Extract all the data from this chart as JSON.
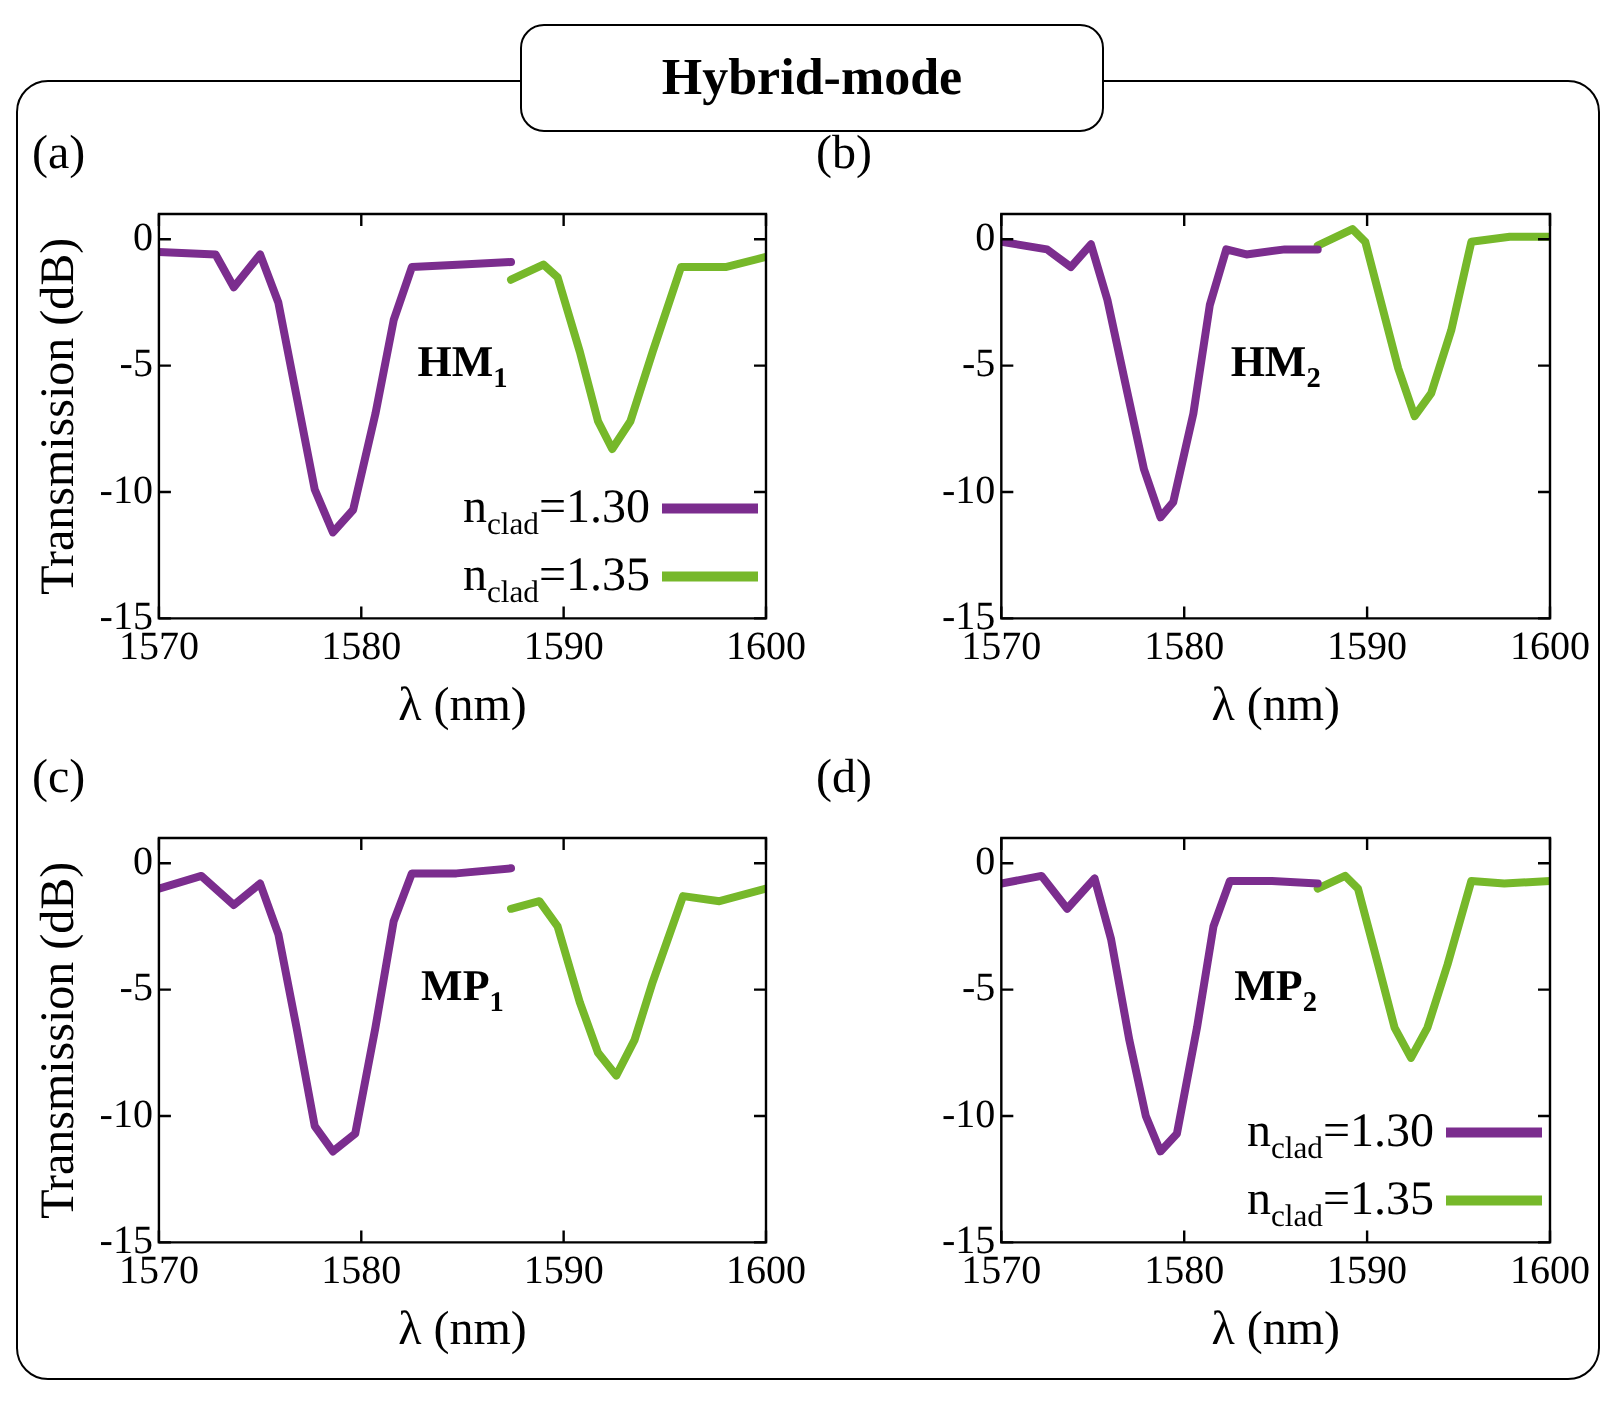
{
  "chart_data": [
    {
      "type": "line",
      "title": "Hybrid-mode",
      "subtitle": "(a)",
      "xlabel": "λ (nm)",
      "ylabel": "Transmission (dB)",
      "xlim": [
        1570,
        1600
      ],
      "ylim": [
        -15,
        1
      ],
      "xticks": [
        1570,
        1580,
        1590,
        1600
      ],
      "yticks": [
        0,
        -5,
        -10,
        -15
      ],
      "grid": false,
      "legend": "bottom right",
      "marker": "none",
      "line_style": "solid",
      "annotations": [
        "HM$_{1}$"
      ],
      "series": [
        {
          "name": "n$_{clad}$=1.30",
          "color": "#7b2d8e",
          "x": [
            1570,
            1572.8,
            1573.7,
            1575,
            1575.9,
            1576.8,
            1577.7,
            1578.6,
            1579.6,
            1580.7,
            1581.6,
            1582.5,
            1585,
            1587.4
          ],
          "values": [
            -0.5,
            -0.6,
            -1.9,
            -0.6,
            -2.5,
            -6.2,
            -9.9,
            -11.6,
            -10.7,
            -6.9,
            -3.2,
            -1.1,
            -1.0,
            -0.9
          ]
        },
        {
          "name": "n$_{clad}$=1.35",
          "color": "#76b82a",
          "x": [
            1587.4,
            1589,
            1589.7,
            1590.8,
            1591.7,
            1592.4,
            1593.3,
            1594.4,
            1595.8,
            1598,
            1600
          ],
          "values": [
            -1.6,
            -1.0,
            -1.5,
            -4.45,
            -7.2,
            -8.3,
            -7.2,
            -4.45,
            -1.1,
            -1.1,
            -0.7
          ]
        }
      ]
    },
    {
      "type": "line",
      "subtitle": "(b)",
      "xlabel": "λ (nm)",
      "xlim": [
        1570,
        1600
      ],
      "ylim": [
        -15,
        1
      ],
      "xticks": [
        1570,
        1580,
        1590,
        1600
      ],
      "yticks": [
        0,
        -5,
        -10,
        -15
      ],
      "grid": false,
      "marker": "none",
      "line_style": "solid",
      "annotations": [
        "HM$_{2}$"
      ],
      "series": [
        {
          "color": "#7b2d8e",
          "x": [
            1570,
            1572.5,
            1573.8,
            1574.9,
            1575.8,
            1576.9,
            1577.8,
            1578.7,
            1579.4,
            1580.5,
            1581.4,
            1582.3,
            1583.4,
            1585.5,
            1587.3
          ],
          "values": [
            -0.1,
            -0.4,
            -1.1,
            -0.2,
            -2.4,
            -6.1,
            -9.1,
            -11.0,
            -10.4,
            -6.9,
            -2.6,
            -0.4,
            -0.6,
            -0.4,
            -0.4
          ]
        },
        {
          "color": "#76b82a",
          "x": [
            1587.3,
            1589.2,
            1589.9,
            1590.8,
            1591.7,
            1592.6,
            1593.5,
            1594.6,
            1595.7,
            1597.8,
            1600
          ],
          "values": [
            -0.25,
            0.4,
            -0.1,
            -2.6,
            -5.1,
            -7.0,
            -6.1,
            -3.6,
            -0.1,
            0.1,
            0.1
          ]
        }
      ]
    },
    {
      "type": "line",
      "subtitle": "(c)",
      "xlabel": "λ (nm)",
      "ylabel": "Transmission (dB)",
      "xlim": [
        1570,
        1600
      ],
      "ylim": [
        -15,
        1
      ],
      "xticks": [
        1570,
        1580,
        1590,
        1600
      ],
      "yticks": [
        0,
        -5,
        -10,
        -15
      ],
      "grid": false,
      "marker": "none",
      "line_style": "solid",
      "annotations": [
        "MP$_{1}$"
      ],
      "series": [
        {
          "color": "#7b2d8e",
          "x": [
            1570,
            1572.1,
            1573.7,
            1575,
            1575.9,
            1576.8,
            1577.7,
            1578.6,
            1579.7,
            1580.7,
            1581.6,
            1582.5,
            1584.7,
            1587.4
          ],
          "values": [
            -1.0,
            -0.5,
            -1.65,
            -0.8,
            -2.8,
            -6.5,
            -10.4,
            -11.4,
            -10.7,
            -6.5,
            -2.3,
            -0.4,
            -0.4,
            -0.2
          ]
        },
        {
          "color": "#76b82a",
          "x": [
            1587.4,
            1588.8,
            1589.7,
            1590.8,
            1591.7,
            1592.6,
            1593.5,
            1594.4,
            1595.9,
            1597.7,
            1600
          ],
          "values": [
            -1.8,
            -1.5,
            -2.5,
            -5.5,
            -7.5,
            -8.4,
            -7.0,
            -4.7,
            -1.3,
            -1.5,
            -1.0
          ]
        }
      ]
    },
    {
      "type": "line",
      "subtitle": "(d)",
      "xlabel": "λ (nm)",
      "xlim": [
        1570,
        1600
      ],
      "ylim": [
        -15,
        1
      ],
      "xticks": [
        1570,
        1580,
        1590,
        1600
      ],
      "yticks": [
        0,
        -5,
        -10,
        -15
      ],
      "grid": false,
      "legend": "bottom right",
      "marker": "none",
      "line_style": "solid",
      "annotations": [
        "MP$_{2}$"
      ],
      "series": [
        {
          "name": "n$_{clad}$=1.30",
          "color": "#7b2d8e",
          "x": [
            1570,
            1572.2,
            1573.6,
            1575.1,
            1576,
            1577,
            1577.9,
            1578.7,
            1579.6,
            1580.7,
            1581.6,
            1582.5,
            1584.8,
            1587.3
          ],
          "values": [
            -0.8,
            -0.5,
            -1.8,
            -0.6,
            -3.0,
            -7.0,
            -10.0,
            -11.4,
            -10.7,
            -6.5,
            -2.5,
            -0.7,
            -0.7,
            -0.8
          ]
        },
        {
          "name": "n$_{clad}$=1.35",
          "color": "#76b82a",
          "x": [
            1587.3,
            1588.8,
            1589.5,
            1590.6,
            1591.5,
            1592.4,
            1593.3,
            1594.4,
            1595.7,
            1597.5,
            1600
          ],
          "values": [
            -1.0,
            -0.5,
            -1.0,
            -4.0,
            -6.5,
            -7.7,
            -6.5,
            -4.0,
            -0.7,
            -0.8,
            -0.7
          ]
        }
      ]
    }
  ]
}
